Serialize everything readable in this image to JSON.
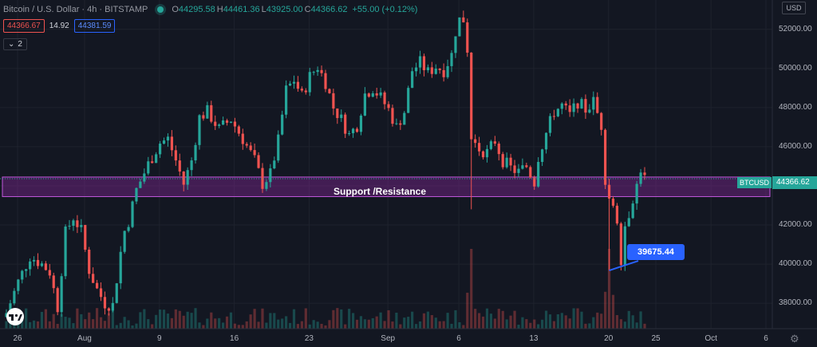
{
  "header": {
    "symbol": "Bitcoin / U.S. Dollar · 4h · BITSTAMP",
    "open_key": "O",
    "open": "44295.58",
    "high_key": "H",
    "high": "44461.36",
    "low_key": "L",
    "low": "43925.00",
    "close_key": "C",
    "close": "44366.62",
    "change": "+55.00 (+0.12%)"
  },
  "trade": {
    "sell": "44366.67",
    "spread": "14.92",
    "buy": "44381.59"
  },
  "indicators_toggle": "2",
  "currency": "USD",
  "price_axis": [
    "52000.00",
    "50000.00",
    "48000.00",
    "46000.00",
    "44000.00",
    "42000.00",
    "40000.00",
    "38000.00"
  ],
  "time_axis": [
    "26",
    "Aug",
    "9",
    "16",
    "23",
    "Sep",
    "6",
    "13",
    "20",
    "25",
    "Oct",
    "6"
  ],
  "last_price": {
    "symbol": "BTCUSD",
    "price": "44366.62"
  },
  "zone_label": "Support /Resistance",
  "callout": "39675.44",
  "colors": {
    "up": "#26a69a",
    "down": "#ef5350",
    "zone": "#9c27b0",
    "callout": "#2962ff",
    "background": "#131722"
  },
  "chart_data": {
    "type": "candlestick",
    "ylim": [
      36700,
      53500
    ],
    "zone": [
      43450,
      44450
    ],
    "close_path": [
      [
        0,
        37500
      ],
      [
        3,
        39100
      ],
      [
        6,
        40400
      ],
      [
        9,
        40000
      ],
      [
        11,
        39600
      ],
      [
        13,
        37800
      ],
      [
        15,
        41600
      ],
      [
        17,
        42400
      ],
      [
        19,
        41700
      ],
      [
        21,
        39700
      ],
      [
        23,
        38700
      ],
      [
        25,
        38000
      ],
      [
        27,
        37900
      ],
      [
        29,
        40600
      ],
      [
        30,
        41700
      ],
      [
        31,
        42200
      ],
      [
        33,
        43800
      ],
      [
        36,
        45100
      ],
      [
        39,
        46200
      ],
      [
        41,
        46400
      ],
      [
        43,
        45300
      ],
      [
        45,
        44100
      ],
      [
        47,
        45300
      ],
      [
        49,
        47500
      ],
      [
        51,
        47800
      ],
      [
        54,
        46900
      ],
      [
        57,
        47400
      ],
      [
        60,
        46400
      ],
      [
        63,
        45300
      ],
      [
        65,
        44100
      ],
      [
        67,
        44600
      ],
      [
        69,
        46300
      ],
      [
        71,
        48900
      ],
      [
        73,
        49400
      ],
      [
        75,
        48600
      ],
      [
        77,
        49600
      ],
      [
        79,
        50100
      ],
      [
        81,
        49300
      ],
      [
        83,
        48000
      ],
      [
        85,
        47400
      ],
      [
        87,
        46600
      ],
      [
        89,
        47100
      ],
      [
        91,
        48700
      ],
      [
        93,
        49000
      ],
      [
        95,
        48500
      ],
      [
        97,
        47900
      ],
      [
        99,
        47000
      ],
      [
        101,
        47800
      ],
      [
        103,
        49900
      ],
      [
        105,
        50300
      ],
      [
        107,
        49800
      ],
      [
        109,
        50100
      ],
      [
        111,
        49900
      ],
      [
        113,
        50700
      ],
      [
        114,
        51900
      ],
      [
        115,
        52500
      ],
      [
        116,
        52500
      ],
      [
        117,
        51000
      ],
      [
        118,
        46400
      ],
      [
        120,
        45900
      ],
      [
        122,
        45700
      ],
      [
        124,
        46300
      ],
      [
        126,
        45300
      ],
      [
        128,
        44900
      ],
      [
        130,
        44700
      ],
      [
        132,
        45000
      ],
      [
        134,
        44200
      ],
      [
        135,
        45500
      ],
      [
        137,
        46700
      ],
      [
        139,
        47800
      ],
      [
        141,
        48100
      ],
      [
        143,
        47600
      ],
      [
        145,
        48300
      ],
      [
        147,
        47900
      ],
      [
        149,
        48300
      ],
      [
        151,
        47100
      ],
      [
        152,
        44400
      ],
      [
        153,
        43400
      ],
      [
        154,
        42800
      ],
      [
        155,
        42300
      ],
      [
        156,
        40300
      ],
      [
        157,
        42000
      ],
      [
        158,
        42600
      ],
      [
        159,
        43400
      ],
      [
        160,
        44000
      ],
      [
        161,
        44900
      ],
      [
        162,
        44367
      ]
    ],
    "wicks": [
      [
        118,
        42800
      ],
      [
        153,
        39675
      ],
      [
        156,
        39675
      ]
    ],
    "candle_count": 163,
    "volume": "bars"
  }
}
